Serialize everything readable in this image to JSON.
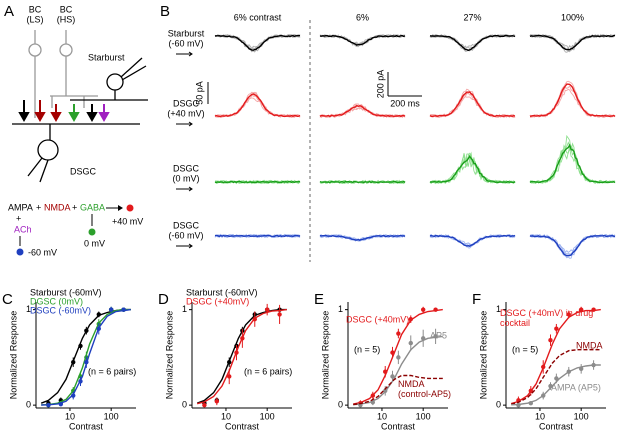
{
  "schematic": {
    "label": "A",
    "bc_ls": [
      "BC",
      "(LS)"
    ],
    "bc_hs": [
      "BC",
      "(HS)"
    ],
    "starburst": "Starburst",
    "dsgc": "DSGC",
    "ampa": "AMPA",
    "plus_1": "+",
    "nmda": "NMDA",
    "plus_2": "+",
    "gaba": "GABA",
    "plus_3": "+",
    "ach": "ACh",
    "v_pos": "+40 mV",
    "v_zero": "0 mV",
    "v_neg": "-60 mV"
  },
  "traces": {
    "label": "B",
    "columns": [
      "6% contrast",
      "6%",
      "27%",
      "100%"
    ],
    "rows": [
      [
        "Starburst",
        "(-60 mV)"
      ],
      [
        "DSGC",
        "(+40 mV)"
      ],
      [
        "DSGC",
        "(0 mV)"
      ],
      [
        "DSGC",
        "(-60 mV)"
      ]
    ],
    "scale_left": "50 pA",
    "scale_right": "200 pA",
    "scale_time": "200 ms"
  },
  "chart_data": [
    {
      "type": "line",
      "label": "C",
      "xlabel": "Contrast",
      "ylabel": "Normalized Response",
      "log_x": true,
      "xlim": [
        1.5,
        400
      ],
      "ylim": [
        -0.03,
        1.08
      ],
      "xticks": [
        10,
        100
      ],
      "yticks": [
        0,
        1
      ],
      "annotation": "(n = 6 pairs)",
      "x": [
        3,
        6,
        12,
        18,
        25,
        50,
        100,
        200
      ],
      "curve_x": [
        2,
        3,
        5,
        8,
        12,
        20,
        30,
        50,
        80,
        130,
        200,
        300
      ],
      "series": [
        {
          "name": "Starburst (-60mV)",
          "color": "#000000",
          "values": [
            0.02,
            0.05,
            0.45,
            0.62,
            0.78,
            0.95,
            1.0,
            1.0
          ],
          "errors": [
            0.02,
            0.03,
            0.05,
            0.04,
            0.04,
            0.03,
            0.02,
            0.02
          ],
          "curve": [
            0.02,
            0.05,
            0.13,
            0.27,
            0.46,
            0.7,
            0.84,
            0.94,
            0.97,
            0.99,
            1.0,
            1.0
          ]
        },
        {
          "name": "DGSC (0mV)",
          "color": "#2ca02c",
          "values": [
            0.0,
            0.02,
            0.15,
            0.3,
            0.5,
            0.85,
            1.0,
            1.0
          ],
          "errors": [
            0.02,
            0.02,
            0.04,
            0.05,
            0.06,
            0.05,
            0.03,
            0.02
          ],
          "curve": [
            0.002,
            0.006,
            0.02,
            0.06,
            0.15,
            0.39,
            0.64,
            0.86,
            0.95,
            0.99,
            1.0,
            1.0
          ]
        },
        {
          "name": "DSGC (-60mV)",
          "color": "#1f3fbf",
          "values": [
            0.0,
            0.01,
            0.1,
            0.25,
            0.45,
            0.8,
            1.0,
            1.0
          ],
          "errors": [
            0.02,
            0.02,
            0.04,
            0.05,
            0.06,
            0.06,
            0.03,
            0.02
          ],
          "curve": [
            0.001,
            0.004,
            0.013,
            0.04,
            0.11,
            0.3,
            0.54,
            0.81,
            0.93,
            0.98,
            0.99,
            1.0
          ]
        }
      ]
    },
    {
      "type": "line",
      "label": "D",
      "xlabel": "Contrast",
      "ylabel": "Normalized Response",
      "log_x": true,
      "xlim": [
        1.5,
        400
      ],
      "ylim": [
        -0.03,
        1.08
      ],
      "xticks": [
        10,
        100
      ],
      "yticks": [
        0,
        1
      ],
      "annotation": "(n = 6 pairs)",
      "x": [
        3,
        6,
        12,
        18,
        25,
        50,
        100,
        200
      ],
      "curve_x": [
        2,
        3,
        5,
        8,
        12,
        20,
        30,
        50,
        80,
        130,
        200,
        300
      ],
      "series": [
        {
          "name": "Starburst (-60mV)",
          "color": "#000000",
          "values": [
            0.02,
            0.05,
            0.45,
            0.62,
            0.78,
            0.95,
            1.0,
            1.0
          ],
          "errors": [
            0.02,
            0.03,
            0.05,
            0.04,
            0.04,
            0.03,
            0.02,
            0.02
          ],
          "curve": [
            0.02,
            0.05,
            0.13,
            0.27,
            0.46,
            0.7,
            0.84,
            0.94,
            0.97,
            0.99,
            1.0,
            1.0
          ]
        },
        {
          "name": "DSGC (+40mV)",
          "color": "#e31a1c",
          "values": [
            0.0,
            0.04,
            0.3,
            0.55,
            0.7,
            0.9,
            1.0,
            0.95
          ],
          "errors": [
            0.02,
            0.04,
            0.08,
            0.08,
            0.1,
            0.08,
            0.06,
            0.1
          ],
          "curve": [
            0.015,
            0.034,
            0.09,
            0.2,
            0.36,
            0.61,
            0.78,
            0.91,
            0.96,
            0.985,
            0.99,
            1.0
          ]
        }
      ]
    },
    {
      "type": "line",
      "label": "E",
      "xlabel": "Contrast",
      "ylabel": "Normalized Response",
      "log_x": true,
      "xlim": [
        1.5,
        400
      ],
      "ylim": [
        -0.03,
        1.08
      ],
      "xticks": [
        10,
        100
      ],
      "yticks": [
        0,
        1
      ],
      "annotation": "(n = 5)",
      "x": [
        3,
        6,
        12,
        18,
        25,
        50,
        100,
        200
      ],
      "curve_x": [
        2,
        3,
        5,
        8,
        12,
        20,
        30,
        50,
        80,
        130,
        200,
        300
      ],
      "series": [
        {
          "name": "DSGC (+40mV)",
          "color": "#e31a1c",
          "values": [
            0.02,
            0.1,
            0.35,
            0.55,
            0.75,
            0.9,
            1.0,
            1.0
          ],
          "errors": [
            0.03,
            0.04,
            0.06,
            0.06,
            0.05,
            0.04,
            0.03,
            0.02
          ],
          "curve": [
            0.012,
            0.027,
            0.07,
            0.16,
            0.31,
            0.55,
            0.74,
            0.89,
            0.95,
            0.98,
            0.99,
            1.0
          ]
        },
        {
          "name": "AP5",
          "color": "#8c8c8c",
          "values": [
            0.0,
            0.03,
            0.15,
            0.3,
            0.5,
            0.65,
            0.7,
            0.72
          ],
          "errors": [
            0.02,
            0.03,
            0.05,
            0.06,
            0.07,
            0.08,
            0.09,
            0.08
          ],
          "curve": [
            0.005,
            0.011,
            0.028,
            0.07,
            0.14,
            0.28,
            0.43,
            0.58,
            0.66,
            0.7,
            0.71,
            0.72
          ]
        },
        {
          "name": "NMDA (control-AP5)",
          "color": "#8b0000",
          "dashed": true,
          "curve": [
            0.007,
            0.016,
            0.04,
            0.09,
            0.17,
            0.27,
            0.31,
            0.31,
            0.29,
            0.28,
            0.28,
            0.28
          ]
        }
      ]
    },
    {
      "type": "line",
      "label": "F",
      "xlabel": "Contrast",
      "ylabel": "Normalized Response",
      "log_x": true,
      "xlim": [
        1.5,
        400
      ],
      "ylim": [
        -0.03,
        1.08
      ],
      "xticks": [
        10,
        100
      ],
      "yticks": [
        0,
        1
      ],
      "annotation": "(n = 5)",
      "x": [
        3,
        6,
        12,
        18,
        25,
        50,
        100,
        200
      ],
      "curve_x": [
        2,
        3,
        5,
        8,
        12,
        20,
        30,
        50,
        80,
        130,
        200,
        300
      ],
      "series": [
        {
          "name": "DSGC (+40mV) in drug cocktail",
          "color": "#e31a1c",
          "values": [
            0.05,
            0.15,
            0.4,
            0.68,
            0.8,
            0.95,
            1.0,
            1.0
          ],
          "errors": [
            0.04,
            0.05,
            0.07,
            0.06,
            0.05,
            0.04,
            0.03,
            0.02
          ],
          "curve": [
            0.017,
            0.038,
            0.1,
            0.22,
            0.39,
            0.64,
            0.8,
            0.92,
            0.97,
            0.99,
            0.99,
            1.0
          ]
        },
        {
          "name": "NMDA",
          "color": "#8b0000",
          "dashed": true,
          "curve": [
            0.01,
            0.03,
            0.08,
            0.17,
            0.29,
            0.44,
            0.52,
            0.57,
            0.58,
            0.58,
            0.58,
            0.58
          ]
        },
        {
          "name": "AMPA (AP5)",
          "color": "#8c8c8c",
          "values": [
            0.0,
            0.02,
            0.1,
            0.2,
            0.28,
            0.35,
            0.38,
            0.42
          ],
          "errors": [
            0.02,
            0.02,
            0.04,
            0.04,
            0.05,
            0.05,
            0.05,
            0.05
          ],
          "curve": [
            0.003,
            0.007,
            0.02,
            0.05,
            0.1,
            0.2,
            0.28,
            0.35,
            0.39,
            0.41,
            0.42,
            0.42
          ]
        }
      ]
    }
  ]
}
